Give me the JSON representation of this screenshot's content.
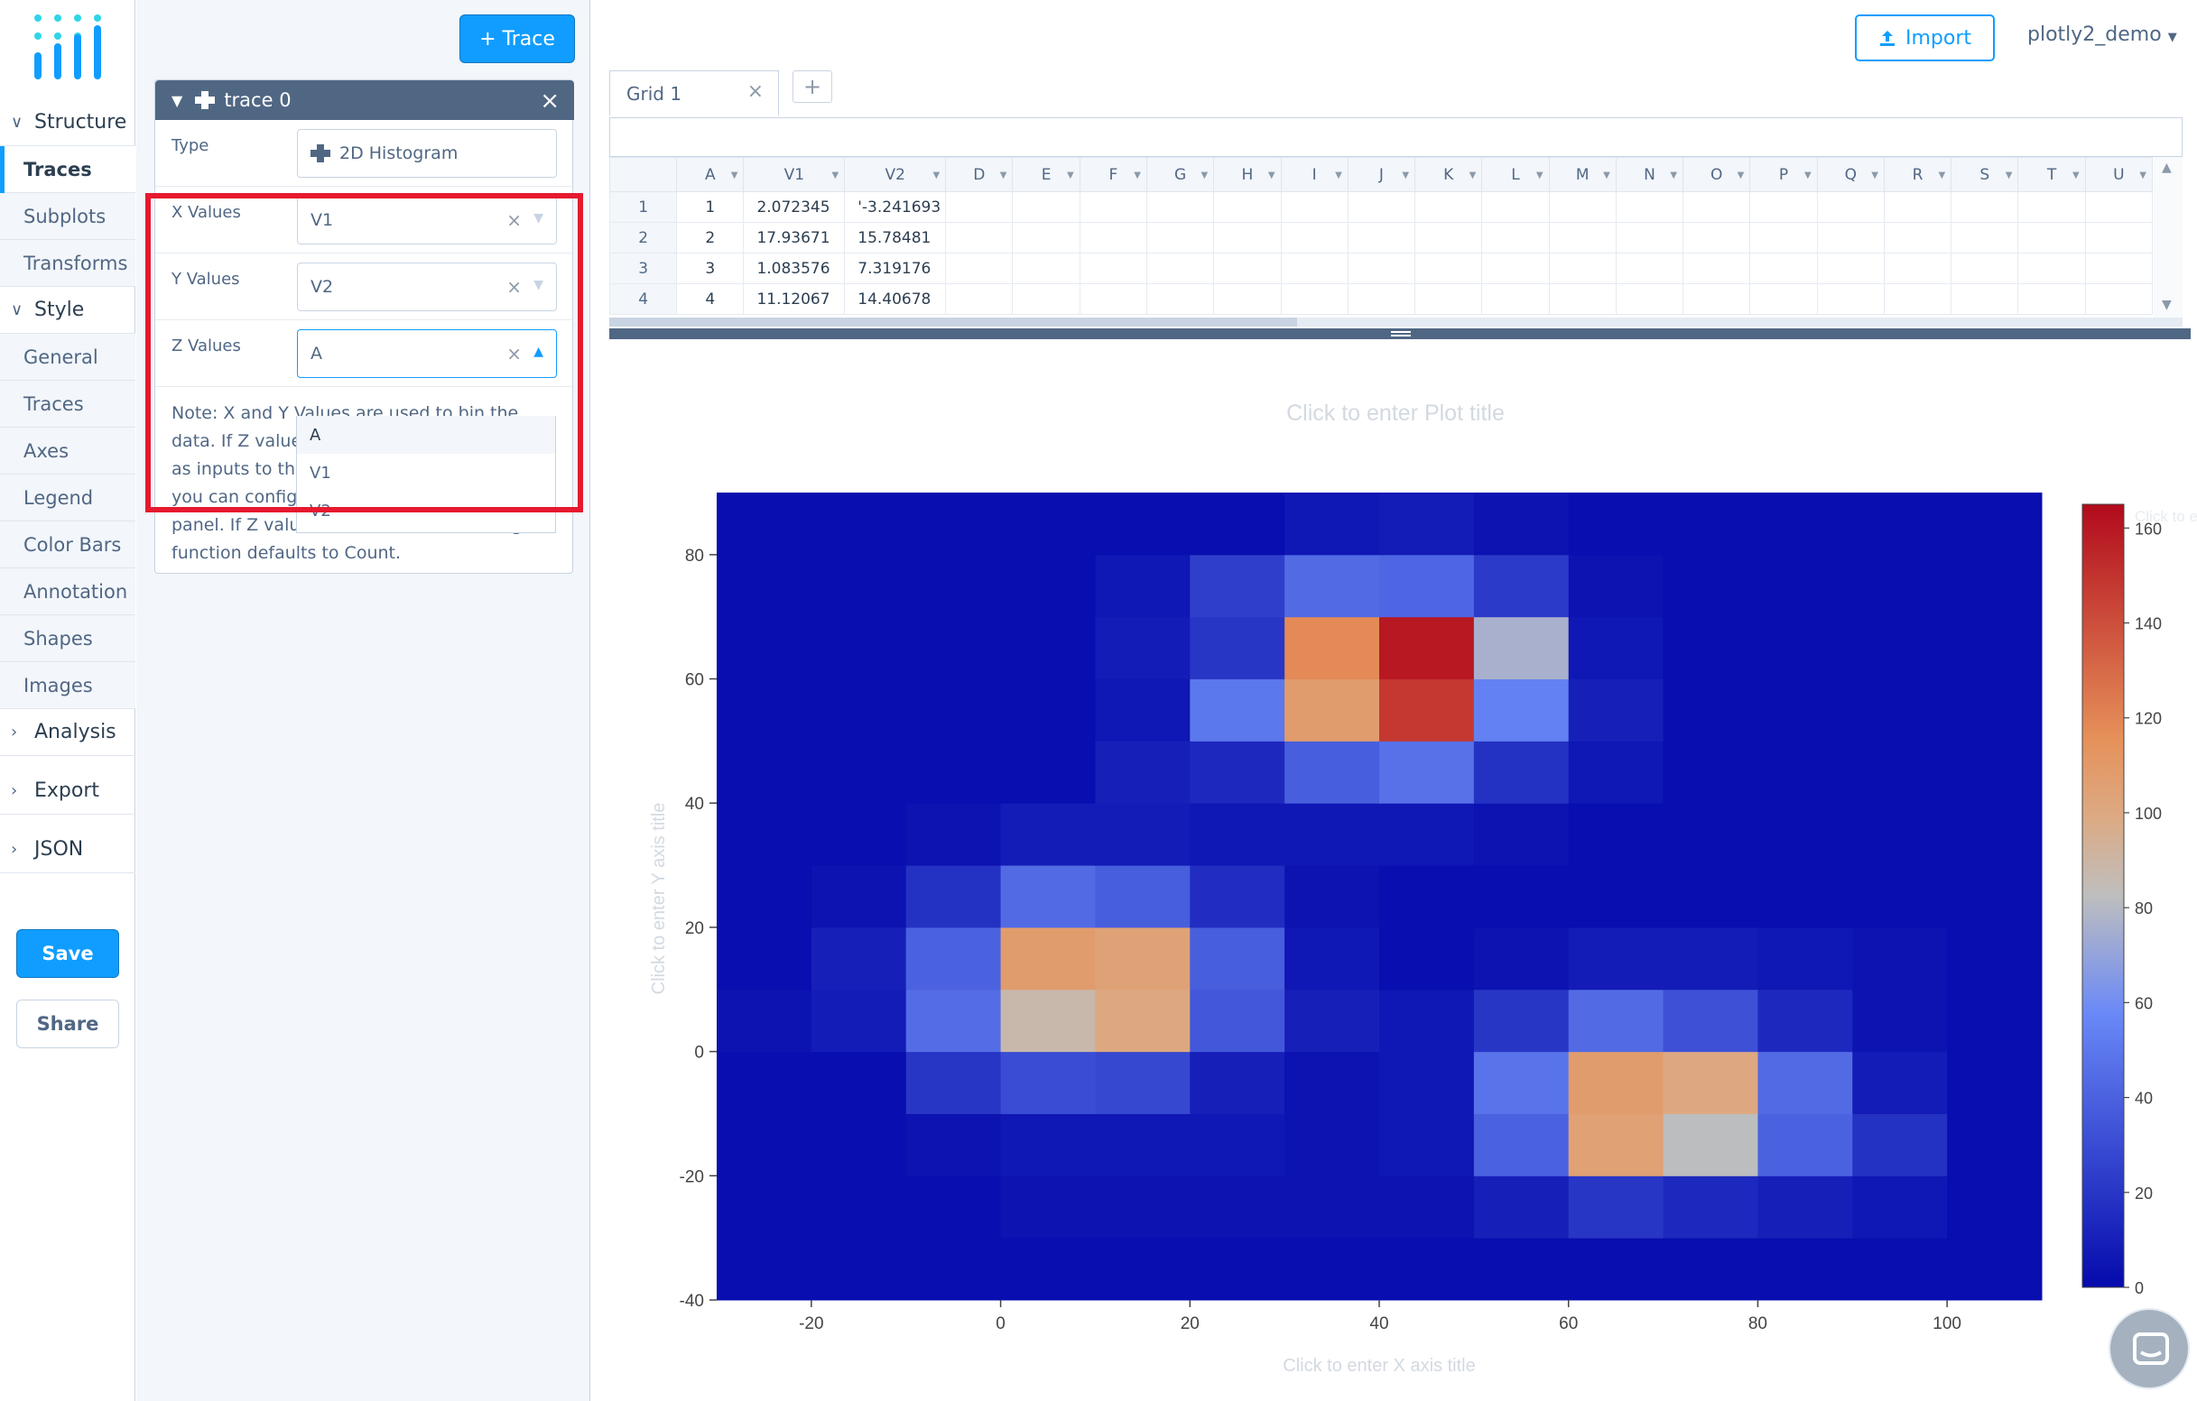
{
  "nav": {
    "sections": [
      {
        "label": "Structure",
        "expanded": true,
        "items": [
          "Traces",
          "Subplots",
          "Transforms"
        ]
      },
      {
        "label": "Style",
        "expanded": true,
        "items": [
          "General",
          "Traces",
          "Axes",
          "Legend",
          "Color Bars",
          "Annotation",
          "Shapes",
          "Images"
        ]
      },
      {
        "label": "Analysis",
        "expanded": false,
        "items": []
      },
      {
        "label": "Export",
        "expanded": false,
        "items": []
      },
      {
        "label": "JSON",
        "expanded": false,
        "items": []
      }
    ],
    "active_item": "Traces",
    "save_label": "Save",
    "share_label": "Share"
  },
  "panel": {
    "add_trace_label": "+ Trace",
    "trace_title": "trace 0",
    "type_label": "Type",
    "type_value": "2D Histogram",
    "x_label": "X Values",
    "x_value": "V1",
    "y_label": "Y Values",
    "y_value": "V2",
    "z_label": "Z Values",
    "z_value": "A",
    "z_options": [
      "A",
      "V1",
      "V2"
    ],
    "note": "Note: X and Y Values are used to bin the data. If Z values are provided, they are used as inputs to the histogram function which you can configure in the Traces under Style panel. If Z values are omitted, the histogram function defaults to Count."
  },
  "topbar": {
    "import_label": "Import",
    "user": "plotly2_demo"
  },
  "grid": {
    "tab_label": "Grid 1",
    "columns": [
      "A",
      "V1",
      "V2",
      "D",
      "E",
      "F",
      "G",
      "H",
      "I",
      "J",
      "K",
      "L",
      "M",
      "N",
      "O",
      "P",
      "Q",
      "R",
      "S",
      "T",
      "U"
    ],
    "rows": [
      {
        "n": "1",
        "cells": [
          "1",
          "2.072345",
          "'-3.241693"
        ]
      },
      {
        "n": "2",
        "cells": [
          "2",
          "17.93671",
          "15.78481"
        ]
      },
      {
        "n": "3",
        "cells": [
          "3",
          "1.083576",
          "7.319176"
        ]
      },
      {
        "n": "4",
        "cells": [
          "4",
          "11.12067",
          "14.40678"
        ]
      }
    ]
  },
  "plot": {
    "title_placeholder": "Click to enter Plot title",
    "xaxis_placeholder": "Click to enter X axis title",
    "yaxis_placeholder": "Click to enter Y axis title",
    "colorbar_placeholder": "Click to enter Colorscale title"
  },
  "chart_data": {
    "type": "heatmap",
    "title": "",
    "xlabel": "",
    "ylabel": "",
    "x_bins": [
      -30,
      -20,
      -10,
      0,
      10,
      20,
      30,
      40,
      50,
      60,
      70,
      80,
      90,
      100,
      110
    ],
    "y_bins": [
      -40,
      -30,
      -20,
      -10,
      0,
      10,
      20,
      30,
      40,
      50,
      60,
      70,
      80,
      90
    ],
    "z": [
      [
        2,
        2,
        2,
        2,
        2,
        2,
        2,
        2,
        2,
        2,
        2,
        2,
        2,
        2
      ],
      [
        2,
        2,
        2,
        4,
        4,
        4,
        4,
        4,
        10,
        20,
        14,
        10,
        6,
        2
      ],
      [
        2,
        2,
        4,
        6,
        6,
        6,
        4,
        6,
        40,
        105,
        82,
        40,
        18,
        2
      ],
      [
        2,
        2,
        20,
        30,
        28,
        10,
        4,
        6,
        48,
        108,
        100,
        44,
        8,
        2
      ],
      [
        4,
        8,
        45,
        88,
        100,
        35,
        10,
        6,
        20,
        44,
        32,
        14,
        4,
        2
      ],
      [
        2,
        10,
        40,
        108,
        104,
        38,
        6,
        2,
        4,
        8,
        8,
        6,
        4,
        2
      ],
      [
        2,
        4,
        18,
        44,
        38,
        16,
        4,
        2,
        2,
        2,
        2,
        2,
        2,
        2
      ],
      [
        2,
        2,
        4,
        8,
        8,
        6,
        6,
        6,
        4,
        2,
        2,
        2,
        2,
        2
      ],
      [
        2,
        2,
        2,
        2,
        10,
        14,
        38,
        47,
        18,
        6,
        2,
        2,
        2,
        2
      ],
      [
        2,
        2,
        2,
        2,
        6,
        50,
        108,
        148,
        54,
        10,
        2,
        2,
        2,
        2
      ],
      [
        2,
        2,
        2,
        2,
        8,
        20,
        118,
        160,
        76,
        6,
        2,
        2,
        2,
        2
      ],
      [
        2,
        2,
        2,
        2,
        6,
        24,
        44,
        42,
        22,
        4,
        2,
        2,
        2,
        2
      ],
      [
        2,
        2,
        2,
        2,
        2,
        2,
        6,
        8,
        4,
        2,
        2,
        2,
        2,
        2
      ]
    ],
    "xticks": [
      -20,
      0,
      20,
      40,
      60,
      80,
      100
    ],
    "yticks": [
      -40,
      -20,
      0,
      20,
      40,
      60,
      80
    ],
    "colorbar_ticks": [
      0,
      20,
      40,
      60,
      80,
      100,
      120,
      140,
      160
    ],
    "zmin": 0,
    "zmax": 165,
    "colorscale": "RdBu",
    "xlim": [
      -30,
      110
    ],
    "ylim": [
      -40,
      90
    ]
  }
}
